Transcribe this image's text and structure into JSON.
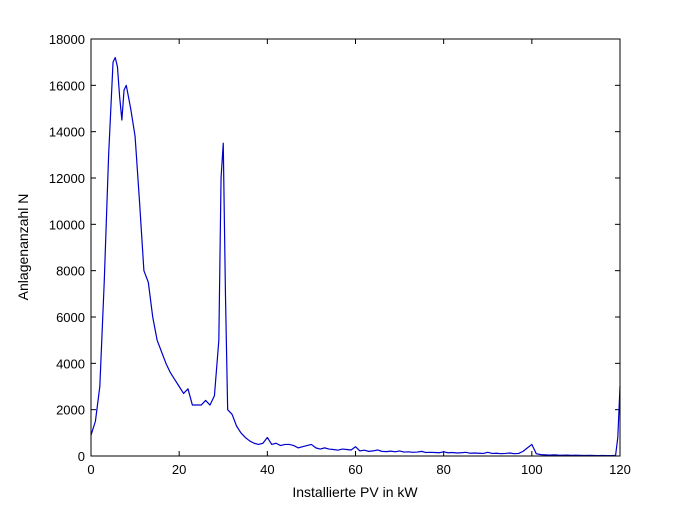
{
  "chart_data": {
    "type": "line",
    "title": "",
    "xlabel": "Installierte PV in kW",
    "ylabel": "Anlagenanzahl N",
    "xlim": [
      0,
      120
    ],
    "ylim": [
      0,
      18000
    ],
    "xticks": [
      0,
      20,
      40,
      60,
      80,
      100,
      120
    ],
    "yticks": [
      0,
      2000,
      4000,
      6000,
      8000,
      10000,
      12000,
      14000,
      16000,
      18000
    ],
    "grid": false,
    "legend": "none",
    "line_color": "#0000cc",
    "series": [
      {
        "values": [
          [
            0,
            900
          ],
          [
            1,
            1500
          ],
          [
            2,
            3000
          ],
          [
            3,
            7500
          ],
          [
            4,
            13000
          ],
          [
            5,
            17000
          ],
          [
            5.5,
            17200
          ],
          [
            6,
            16800
          ],
          [
            6.5,
            15500
          ],
          [
            7,
            14500
          ],
          [
            7.5,
            15800
          ],
          [
            8,
            16000
          ],
          [
            8.5,
            15500
          ],
          [
            9,
            15000
          ],
          [
            10,
            13800
          ],
          [
            11,
            11000
          ],
          [
            12,
            8000
          ],
          [
            13,
            7500
          ],
          [
            14,
            6000
          ],
          [
            15,
            5000
          ],
          [
            16,
            4500
          ],
          [
            17,
            4000
          ],
          [
            18,
            3600
          ],
          [
            19,
            3300
          ],
          [
            20,
            3000
          ],
          [
            21,
            2700
          ],
          [
            22,
            2900
          ],
          [
            23,
            2200
          ],
          [
            24,
            2200
          ],
          [
            25,
            2200
          ],
          [
            26,
            2400
          ],
          [
            27,
            2200
          ],
          [
            28,
            2600
          ],
          [
            29,
            5000
          ],
          [
            29.5,
            12000
          ],
          [
            30,
            13500
          ],
          [
            30.5,
            7000
          ],
          [
            31,
            2000
          ],
          [
            32,
            1800
          ],
          [
            33,
            1300
          ],
          [
            34,
            1000
          ],
          [
            35,
            800
          ],
          [
            36,
            650
          ],
          [
            37,
            550
          ],
          [
            38,
            500
          ],
          [
            39,
            550
          ],
          [
            40,
            800
          ],
          [
            41,
            500
          ],
          [
            42,
            550
          ],
          [
            43,
            450
          ],
          [
            44,
            500
          ],
          [
            45,
            500
          ],
          [
            46,
            450
          ],
          [
            47,
            350
          ],
          [
            48,
            400
          ],
          [
            49,
            450
          ],
          [
            50,
            500
          ],
          [
            51,
            350
          ],
          [
            52,
            300
          ],
          [
            53,
            350
          ],
          [
            54,
            300
          ],
          [
            55,
            280
          ],
          [
            56,
            250
          ],
          [
            57,
            300
          ],
          [
            58,
            280
          ],
          [
            59,
            260
          ],
          [
            60,
            400
          ],
          [
            61,
            220
          ],
          [
            62,
            250
          ],
          [
            63,
            200
          ],
          [
            64,
            220
          ],
          [
            65,
            260
          ],
          [
            66,
            200
          ],
          [
            67,
            190
          ],
          [
            68,
            210
          ],
          [
            69,
            180
          ],
          [
            70,
            220
          ],
          [
            71,
            170
          ],
          [
            72,
            180
          ],
          [
            73,
            160
          ],
          [
            74,
            170
          ],
          [
            75,
            200
          ],
          [
            76,
            150
          ],
          [
            77,
            160
          ],
          [
            78,
            150
          ],
          [
            79,
            140
          ],
          [
            80,
            180
          ],
          [
            81,
            140
          ],
          [
            82,
            150
          ],
          [
            83,
            130
          ],
          [
            84,
            140
          ],
          [
            85,
            160
          ],
          [
            86,
            120
          ],
          [
            87,
            130
          ],
          [
            88,
            120
          ],
          [
            89,
            110
          ],
          [
            90,
            160
          ],
          [
            91,
            110
          ],
          [
            92,
            120
          ],
          [
            93,
            100
          ],
          [
            94,
            110
          ],
          [
            95,
            130
          ],
          [
            96,
            100
          ],
          [
            97,
            110
          ],
          [
            98,
            200
          ],
          [
            99,
            350
          ],
          [
            100,
            500
          ],
          [
            100.5,
            300
          ],
          [
            101,
            100
          ],
          [
            102,
            60
          ],
          [
            103,
            50
          ],
          [
            104,
            40
          ],
          [
            105,
            50
          ],
          [
            106,
            40
          ],
          [
            107,
            35
          ],
          [
            108,
            40
          ],
          [
            109,
            30
          ],
          [
            110,
            35
          ],
          [
            111,
            30
          ],
          [
            112,
            25
          ],
          [
            113,
            30
          ],
          [
            114,
            25
          ],
          [
            115,
            20
          ],
          [
            116,
            25
          ],
          [
            117,
            20
          ],
          [
            118,
            20
          ],
          [
            119,
            30
          ],
          [
            119.5,
            800
          ],
          [
            120,
            3000
          ]
        ]
      }
    ]
  }
}
